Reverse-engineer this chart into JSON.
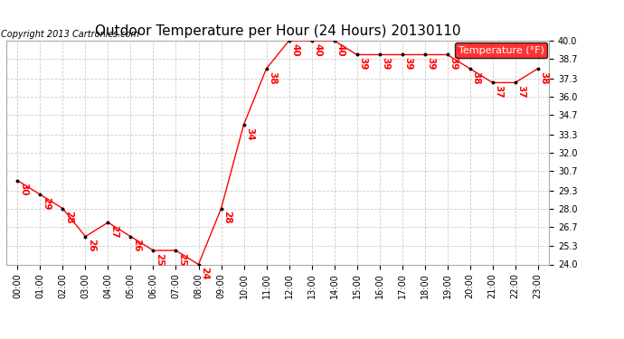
{
  "title": "Outdoor Temperature per Hour (24 Hours) 20130110",
  "copyright": "Copyright 2013 Cartronics.com",
  "legend_label": "Temperature (°F)",
  "hours": [
    "00:00",
    "01:00",
    "02:00",
    "03:00",
    "04:00",
    "05:00",
    "06:00",
    "07:00",
    "08:00",
    "09:00",
    "10:00",
    "11:00",
    "12:00",
    "13:00",
    "14:00",
    "15:00",
    "16:00",
    "17:00",
    "18:00",
    "19:00",
    "20:00",
    "21:00",
    "22:00",
    "23:00"
  ],
  "temps": [
    30,
    29,
    28,
    26,
    27,
    26,
    25,
    25,
    24,
    28,
    34,
    38,
    40,
    40,
    40,
    39,
    39,
    39,
    39,
    39,
    38,
    37,
    37,
    38
  ],
  "ylim_min": 24.0,
  "ylim_max": 40.0,
  "yticks": [
    24.0,
    25.3,
    26.7,
    28.0,
    29.3,
    30.7,
    32.0,
    33.3,
    34.7,
    36.0,
    37.3,
    38.7,
    40.0
  ],
  "line_color": "red",
  "marker_color": "black",
  "label_color": "red",
  "bg_color": "#ffffff",
  "grid_color": "#cccccc",
  "title_fontsize": 11,
  "tick_fontsize": 7,
  "label_fontsize": 7.5,
  "copyright_fontsize": 7,
  "legend_bg": "red",
  "legend_fg": "white",
  "legend_fontsize": 8
}
